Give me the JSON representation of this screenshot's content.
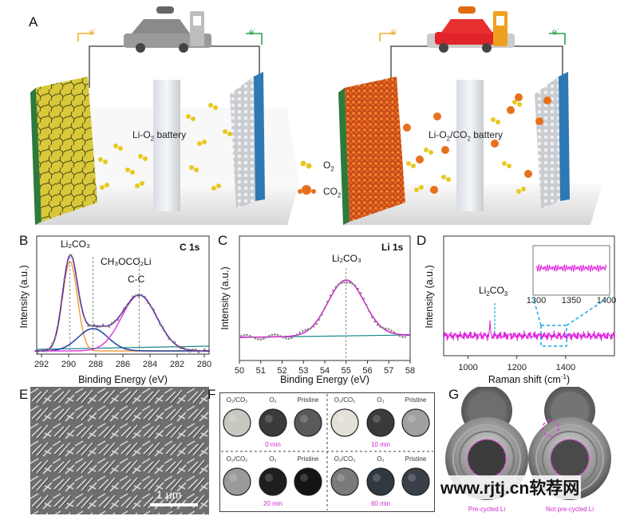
{
  "panel_letters": {
    "A": "A",
    "B": "B",
    "C": "C",
    "D": "D",
    "E": "E",
    "F": "F",
    "G": "G"
  },
  "panelA": {
    "electron_label": "e",
    "electron_sup": "-",
    "left_battery": {
      "prefix": "Li-O",
      "sub": "2",
      "suffix": " battery"
    },
    "right_battery": {
      "prefix": "Li-O",
      "sub1": "2",
      "mid": "/CO",
      "sub2": "2",
      "suffix": " battery"
    },
    "legend": [
      {
        "name": "O",
        "sub": "2",
        "color": "#e8c820"
      },
      {
        "name": "CO",
        "sub": "2",
        "color": "#e8701c"
      }
    ]
  },
  "panelB": {
    "title": "C 1s",
    "xlabel": "Binding Energy (eV)",
    "ylabel": "Intensity (a.u.)",
    "xticks": [
      "292",
      "290",
      "288",
      "286",
      "284",
      "282",
      "280"
    ],
    "peaks": [
      {
        "label": "Li₂CO₃"
      },
      {
        "label": "CH₃OCO₂Li"
      },
      {
        "label": "C-C"
      }
    ]
  },
  "panelC": {
    "title": "Li 1s",
    "xlabel": "Binding Energy (eV)",
    "ylabel": "Intensity (a.u.)",
    "xticks": [
      "50",
      "51",
      "52",
      "53",
      "54",
      "55",
      "56",
      "57",
      "58"
    ],
    "peak_label": "Li₂CO₃"
  },
  "panelD": {
    "xlabel_prefix": "Raman shift (cm",
    "xlabel_sup": "-1",
    "xlabel_suffix": ")",
    "ylabel": "Intensity (a.u.)",
    "xticks": [
      "1000",
      "1200",
      "1400"
    ],
    "inset_xticks": [
      "1300",
      "1350",
      "1400"
    ],
    "peak_label_prefix": "Li",
    "peak_label_sub1": "2",
    "peak_label_mid": "CO",
    "peak_label_sub2": "3"
  },
  "panelE": {
    "scale_bar": "1 μm"
  },
  "panelF": {
    "groups": [
      {
        "time": "0 min",
        "captions": [
          "O₂/CO₂",
          "O₂",
          "Pristine"
        ]
      },
      {
        "time": "10 min",
        "captions": [
          "O₂/CO₂",
          "O₂",
          "Pristine"
        ]
      },
      {
        "time": "20 min",
        "captions": [
          "O₂/CO₂",
          "O₂",
          "Pristine"
        ]
      },
      {
        "time": "60 min",
        "captions": [
          "O₂/CO₂",
          "O₂",
          "Pristine"
        ]
      }
    ]
  },
  "panelG": {
    "captions": [
      "Pre-cycled Li",
      "Not pre-cycled Li"
    ]
  },
  "watermark": "www.rjtj.cn软荐网"
}
